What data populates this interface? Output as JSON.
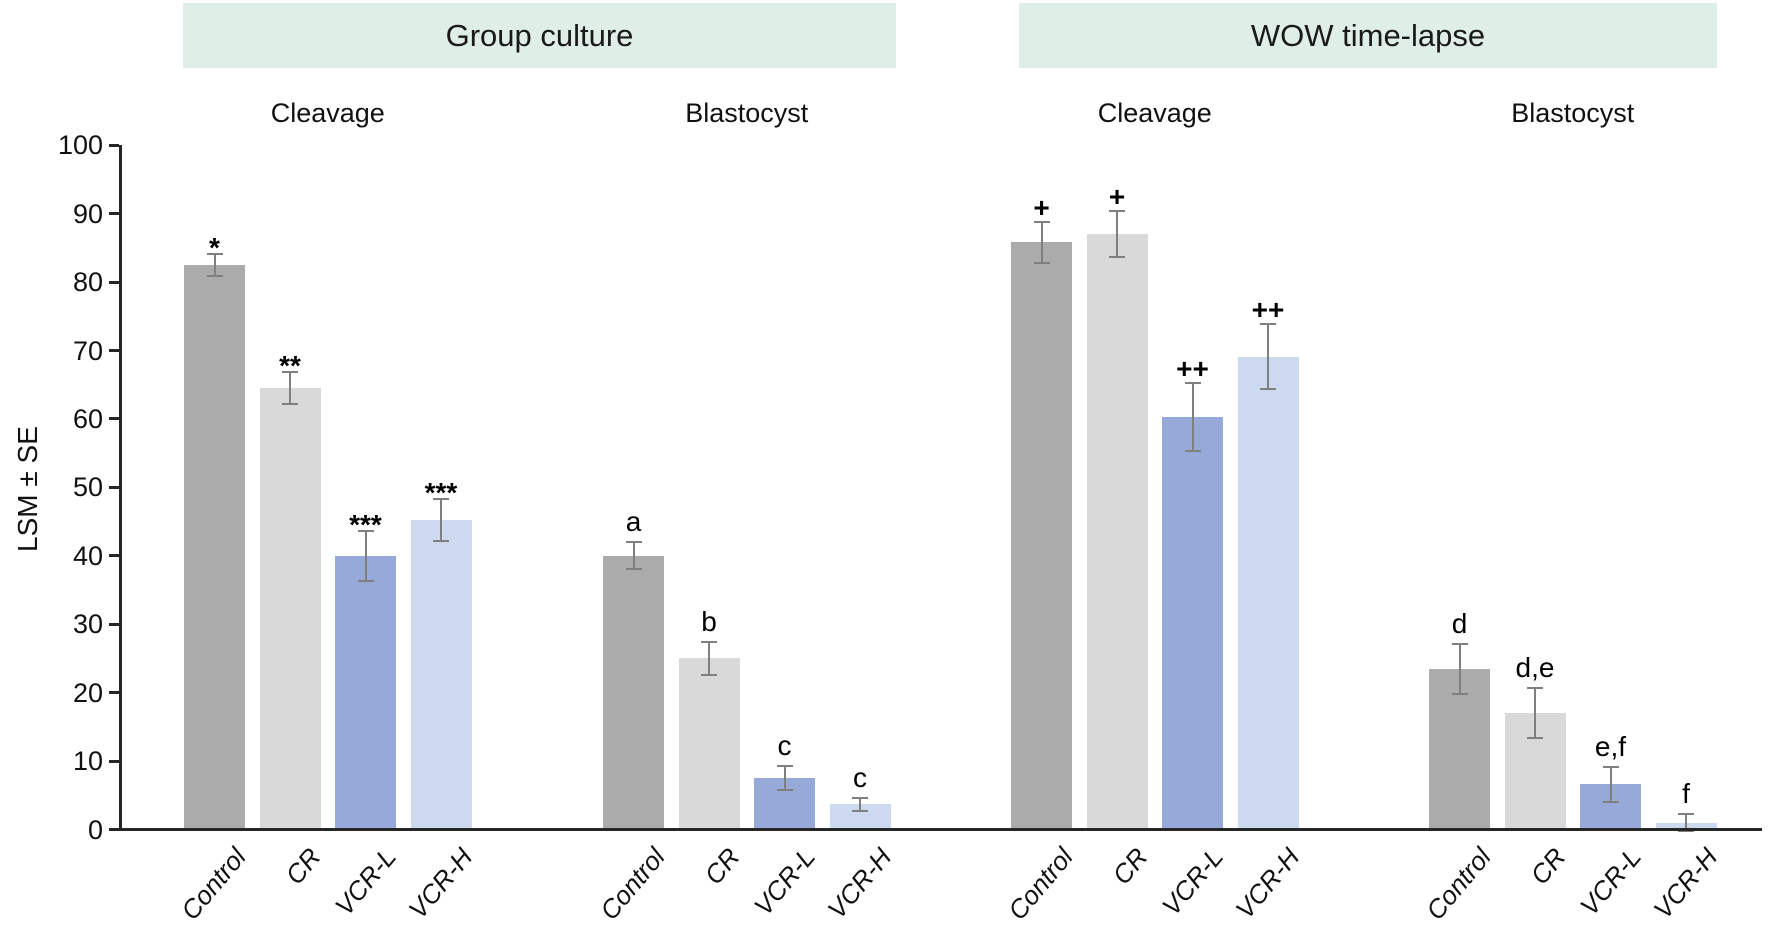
{
  "figure": {
    "header_bg": "#dfeee6",
    "axis_color": "#262626",
    "error_bar_color": "#7f7f7f",
    "text_color": "#111111"
  },
  "chart_data": {
    "type": "bar",
    "title": "",
    "ylabel": "LSM ± SE",
    "xlabel": "",
    "ylim": [
      0,
      100
    ],
    "yticks": [
      0,
      10,
      20,
      30,
      40,
      50,
      60,
      70,
      80,
      90,
      100
    ],
    "grid": false,
    "legend": "none",
    "categories": [
      "Control",
      "CR",
      "VCR-L",
      "VCR-H"
    ],
    "bar_colors": [
      "#ababab",
      "#d9d9d9",
      "#96a9d9",
      "#cdd9ee"
    ],
    "panels": [
      {
        "title": "Group culture",
        "groups": [
          {
            "label": "Cleavage",
            "bars": [
              {
                "category": "Control",
                "value": 82.5,
                "se": 1.7,
                "sig": "*"
              },
              {
                "category": "CR",
                "value": 64.5,
                "se": 2.5,
                "sig": "**"
              },
              {
                "category": "VCR-L",
                "value": 40.0,
                "se": 3.8,
                "sig": "***"
              },
              {
                "category": "VCR-H",
                "value": 45.2,
                "se": 3.2,
                "sig": "***"
              }
            ]
          },
          {
            "label": "Blastocyst",
            "bars": [
              {
                "category": "Control",
                "value": 40.0,
                "se": 2.1,
                "sig": "a"
              },
              {
                "category": "CR",
                "value": 25.0,
                "se": 2.6,
                "sig": "b"
              },
              {
                "category": "VCR-L",
                "value": 7.5,
                "se": 1.9,
                "sig": "c"
              },
              {
                "category": "VCR-H",
                "value": 3.7,
                "se": 1.1,
                "sig": "c"
              }
            ]
          }
        ]
      },
      {
        "title": "WOW time-lapse",
        "groups": [
          {
            "label": "Cleavage",
            "bars": [
              {
                "category": "Control",
                "value": 85.8,
                "se": 3.2,
                "sig": "+"
              },
              {
                "category": "CR",
                "value": 87.1,
                "se": 3.5,
                "sig": "+"
              },
              {
                "category": "VCR-L",
                "value": 60.3,
                "se": 5.1,
                "sig": "++"
              },
              {
                "category": "VCR-H",
                "value": 69.1,
                "se": 4.9,
                "sig": "++"
              }
            ]
          },
          {
            "label": "Blastocyst",
            "bars": [
              {
                "category": "Control",
                "value": 23.5,
                "se": 3.8,
                "sig": "d"
              },
              {
                "category": "CR",
                "value": 17.0,
                "se": 3.8,
                "sig": "d,e"
              },
              {
                "category": "VCR-L",
                "value": 6.6,
                "se": 2.7,
                "sig": "e,f"
              },
              {
                "category": "VCR-H",
                "value": 1.0,
                "se": 1.4,
                "sig": "f"
              }
            ]
          }
        ]
      }
    ]
  }
}
